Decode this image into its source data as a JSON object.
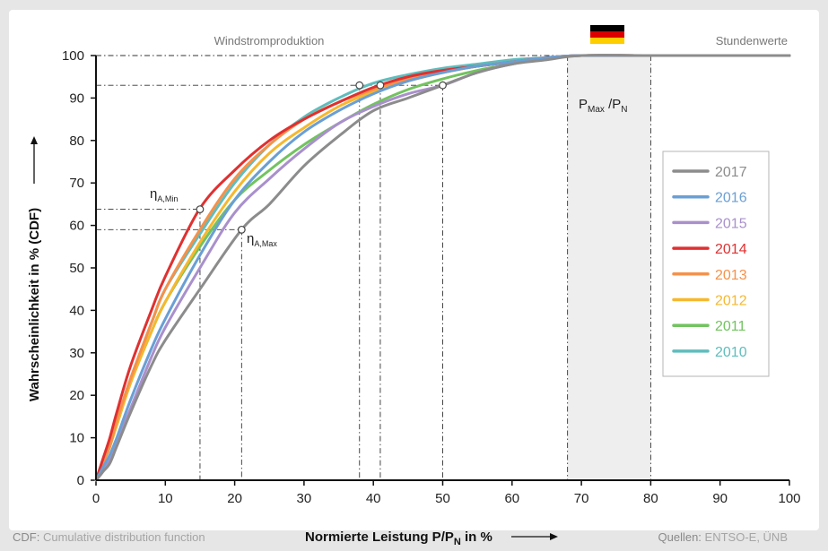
{
  "chart_data": {
    "type": "line",
    "title_left": "Windstromproduktion",
    "title_right": "Stundenwerte",
    "xlabel_main": "Normierte Leistung P/P",
    "xlabel_sub": "N",
    "xlabel_tail": " in %",
    "ylabel": "Wahrscheinlichkeit in % (CDF)",
    "xlim": [
      0,
      100
    ],
    "ylim": [
      0,
      100
    ],
    "xticks": [
      "0",
      "10",
      "20",
      "30",
      "40",
      "50",
      "60",
      "70",
      "80",
      "90",
      "100"
    ],
    "yticks": [
      "0",
      "10",
      "20",
      "30",
      "40",
      "50",
      "60",
      "70",
      "80",
      "90",
      "100"
    ],
    "shaded_band": {
      "x0": 68,
      "x1": 80,
      "label_main": "P",
      "label_sub1": "Max",
      "label_mid": " /P",
      "label_sub2": "N"
    },
    "reference_lines": {
      "vertical": [
        15,
        21,
        38,
        41,
        50,
        68,
        80
      ],
      "horizontal": [
        93,
        63.8,
        59
      ]
    },
    "markers": [
      {
        "x": 15,
        "y": 63.8,
        "label_main": "η",
        "label_sub": "A,Min"
      },
      {
        "x": 21,
        "y": 59,
        "label_main": "η",
        "label_sub": "A,Max"
      },
      {
        "x": 38,
        "y": 93
      },
      {
        "x": 41,
        "y": 93
      },
      {
        "x": 50,
        "y": 93
      }
    ],
    "legend_position": "right",
    "series": [
      {
        "name": "2017",
        "color": "#8c8c8c",
        "x": [
          0,
          1,
          2,
          3,
          5,
          8,
          10,
          15,
          21,
          25,
          30,
          35,
          40,
          45,
          50,
          55,
          60,
          65,
          70,
          80,
          100
        ],
        "y": [
          0,
          2,
          4,
          8,
          16,
          27,
          33,
          45,
          59,
          65,
          74,
          81,
          87,
          90,
          93,
          96,
          98,
          99,
          100,
          100,
          100
        ]
      },
      {
        "name": "2016",
        "color": "#6a9fd4",
        "x": [
          0,
          1,
          2,
          3,
          5,
          8,
          10,
          15,
          20,
          25,
          30,
          35,
          40,
          45,
          50,
          55,
          60,
          65,
          70,
          80,
          100
        ],
        "y": [
          0,
          3,
          6,
          10,
          19,
          31,
          38,
          53,
          66,
          75,
          82,
          87,
          91,
          94,
          96,
          97.5,
          98.5,
          99.5,
          100,
          100,
          100
        ]
      },
      {
        "name": "2015",
        "color": "#a990cc",
        "x": [
          0,
          1,
          2,
          3,
          5,
          8,
          10,
          15,
          20,
          25,
          30,
          35,
          40,
          45,
          50,
          55,
          60,
          65,
          70,
          80,
          100
        ],
        "y": [
          0,
          2,
          5,
          9,
          17,
          29,
          36,
          50,
          63,
          71,
          78,
          84,
          88,
          91,
          93,
          96,
          98,
          99.5,
          100,
          100,
          100
        ]
      },
      {
        "name": "2014",
        "color": "#e03030",
        "x": [
          0,
          1,
          2,
          3,
          5,
          8,
          10,
          15,
          20,
          25,
          30,
          35,
          40,
          45,
          50,
          55,
          60,
          65,
          70,
          80,
          100
        ],
        "y": [
          0,
          5,
          10,
          16,
          27,
          40,
          48,
          64,
          73,
          80,
          85,
          89,
          92.5,
          95,
          96.5,
          97.5,
          98.5,
          99.5,
          100,
          100,
          100
        ]
      },
      {
        "name": "2013",
        "color": "#f5914a",
        "x": [
          0,
          1,
          2,
          3,
          5,
          8,
          10,
          15,
          20,
          25,
          30,
          35,
          40,
          45,
          50,
          55,
          60,
          65,
          70,
          80,
          100
        ],
        "y": [
          0,
          4,
          8,
          14,
          24,
          37,
          45,
          59,
          71,
          79,
          85,
          89,
          92,
          94.5,
          96,
          97.5,
          98.5,
          99.5,
          100,
          100,
          100
        ]
      },
      {
        "name": "2012",
        "color": "#f5b82e",
        "x": [
          0,
          1,
          2,
          3,
          5,
          8,
          10,
          15,
          20,
          25,
          30,
          35,
          40,
          45,
          50,
          55,
          60,
          65,
          70,
          80,
          100
        ],
        "y": [
          0,
          4,
          8,
          13,
          23,
          35,
          42,
          56,
          68,
          77,
          83,
          88,
          91.5,
          94,
          96,
          97.5,
          98.5,
          99.5,
          100,
          100,
          100
        ]
      },
      {
        "name": "2011",
        "color": "#72c35f",
        "x": [
          0,
          1,
          2,
          3,
          5,
          8,
          10,
          15,
          20,
          25,
          30,
          35,
          40,
          45,
          50,
          55,
          60,
          65,
          70,
          80,
          100
        ],
        "y": [
          0,
          4,
          8,
          13,
          23,
          35,
          42,
          55,
          66,
          73,
          79,
          84,
          88.5,
          92,
          94.5,
          96.5,
          98,
          99.5,
          100,
          100,
          100
        ]
      },
      {
        "name": "2010",
        "color": "#5fbdbd",
        "x": [
          0,
          1,
          2,
          3,
          5,
          8,
          10,
          15,
          20,
          25,
          30,
          35,
          40,
          45,
          50,
          55,
          60,
          65,
          70,
          80,
          100
        ],
        "y": [
          0,
          4,
          8,
          14,
          24,
          37,
          45,
          58,
          70,
          79,
          85.5,
          90,
          93.5,
          95.5,
          97,
          98,
          99,
          99.5,
          100,
          100,
          100
        ]
      }
    ]
  },
  "footer": {
    "left_key": "CDF:",
    "left_text": " Cumulative distribution function",
    "right_key": "Quellen:",
    "right_text": " ENTSO-E, ÜNB"
  },
  "flag": {
    "country": "Germany",
    "colors": [
      "#000000",
      "#dd0000",
      "#ffce00"
    ]
  }
}
